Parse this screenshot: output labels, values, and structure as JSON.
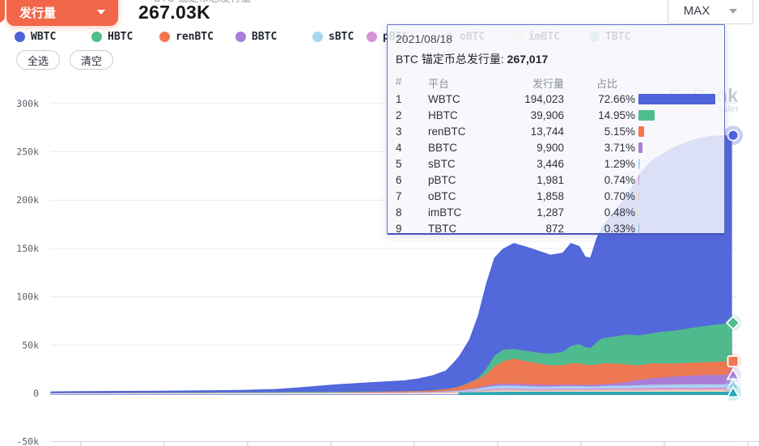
{
  "header": {
    "metric_select": {
      "label": "发行量"
    },
    "title_label_clipped": "BTC 锚定币总发行量",
    "title_value": "267.03K",
    "range_select": {
      "value": "MAX"
    }
  },
  "actions": {
    "select_all": "全选",
    "clear": "清空"
  },
  "legend": {
    "items": [
      {
        "label": "WBTC",
        "color": "#4d63da"
      },
      {
        "label": "HBTC",
        "color": "#4fbd8b"
      },
      {
        "label": "renBTC",
        "color": "#f3764f"
      },
      {
        "label": "BBTC",
        "color": "#a87ddb"
      },
      {
        "label": "sBTC",
        "color": "#a9d5f3"
      },
      {
        "label": "pBTC",
        "color": "#d991d9"
      },
      {
        "label": "oBTC",
        "color": "#f0c9a8"
      },
      {
        "label": "imBTC",
        "color": "#efe3cf"
      },
      {
        "label": "TBTC",
        "color": "#7fc2cc"
      }
    ]
  },
  "watermark": {
    "title": "DeBank",
    "subtitle": "The DeFi Wallet"
  },
  "tooltip": {
    "date": "2021/08/18",
    "total_label": "BTC 锚定币总发行量:",
    "total_value": "267,017",
    "columns": {
      "rank": "#",
      "platform": "平台",
      "issuance": "发行量",
      "share": "占比"
    },
    "rows": [
      {
        "rank": "1",
        "platform": "WBTC",
        "issuance": "194,023",
        "share": "72.66%",
        "share_pct": 72.66,
        "color": "#4d63da"
      },
      {
        "rank": "2",
        "platform": "HBTC",
        "issuance": "39,906",
        "share": "14.95%",
        "share_pct": 14.95,
        "color": "#4fbd8b"
      },
      {
        "rank": "3",
        "platform": "renBTC",
        "issuance": "13,744",
        "share": "5.15%",
        "share_pct": 5.15,
        "color": "#f3764f"
      },
      {
        "rank": "4",
        "platform": "BBTC",
        "issuance": "9,900",
        "share": "3.71%",
        "share_pct": 3.71,
        "color": "#a87ddb"
      },
      {
        "rank": "5",
        "platform": "sBTC",
        "issuance": "3,446",
        "share": "1.29%",
        "share_pct": 1.29,
        "color": "#a9d5f3"
      },
      {
        "rank": "6",
        "platform": "pBTC",
        "issuance": "1,981",
        "share": "0.74%",
        "share_pct": 0.74,
        "color": "#d991d9"
      },
      {
        "rank": "7",
        "platform": "oBTC",
        "issuance": "1,858",
        "share": "0.70%",
        "share_pct": 0.7,
        "color": "#f0c9a8"
      },
      {
        "rank": "8",
        "platform": "imBTC",
        "issuance": "1,287",
        "share": "0.48%",
        "share_pct": 0.48,
        "color": "#efe3cf"
      },
      {
        "rank": "9",
        "platform": "TBTC",
        "issuance": "872",
        "share": "0.33%",
        "share_pct": 0.33,
        "color": "#7fc2cc"
      }
    ]
  },
  "chart_data": {
    "type": "area",
    "stacked": true,
    "title": "BTC 锚定币总发行量",
    "unit": "BTC",
    "legend_position": "top",
    "grid": true,
    "ylim": [
      -50000,
      300000
    ],
    "y_ticks": [
      {
        "label": "300k",
        "k": 300
      },
      {
        "label": "250k",
        "k": 250
      },
      {
        "label": "200k",
        "k": 200
      },
      {
        "label": "150k",
        "k": 150
      },
      {
        "label": "100k",
        "k": 100
      },
      {
        "label": "50k",
        "k": 50
      },
      {
        "label": "0",
        "k": 0
      },
      {
        "label": "-50k",
        "k": -50
      }
    ],
    "hover_point": {
      "date": "2021/08/18",
      "total": 267017
    },
    "series_note": "points are [x_percent_of_timeline, cumulative_stack_top_in_thousand_BTC]; series listed top of stack to bottom",
    "series": [
      {
        "name": "WBTC",
        "color": "#4d63da",
        "marker": "circle",
        "stroke": "#4d63da",
        "points": [
          [
            0,
            1.5
          ],
          [
            4,
            1.8
          ],
          [
            10,
            2
          ],
          [
            16,
            2.3
          ],
          [
            22,
            2.6
          ],
          [
            28,
            3
          ],
          [
            33,
            4
          ],
          [
            37,
            6
          ],
          [
            42,
            9
          ],
          [
            47,
            11
          ],
          [
            52,
            13
          ],
          [
            54,
            15
          ],
          [
            56,
            18
          ],
          [
            58,
            23
          ],
          [
            59,
            30
          ],
          [
            60,
            38
          ],
          [
            61.5,
            55
          ],
          [
            62.8,
            80
          ],
          [
            64,
            113
          ],
          [
            65.2,
            140
          ],
          [
            66.4,
            149
          ],
          [
            68,
            155
          ],
          [
            70,
            151
          ],
          [
            71.7,
            147
          ],
          [
            73.4,
            143
          ],
          [
            75.2,
            145
          ],
          [
            76.4,
            155
          ],
          [
            77.6,
            152
          ],
          [
            78.5,
            141
          ],
          [
            79.3,
            140
          ],
          [
            80.2,
            160
          ],
          [
            81,
            172
          ],
          [
            83,
            190
          ],
          [
            84.7,
            205
          ],
          [
            86.4,
            226
          ],
          [
            88.2,
            240
          ],
          [
            90,
            248
          ],
          [
            91.7,
            255
          ],
          [
            93.5,
            260
          ],
          [
            95.3,
            264
          ],
          [
            97,
            266
          ],
          [
            98.8,
            266.5
          ],
          [
            100,
            267
          ]
        ]
      },
      {
        "name": "HBTC",
        "color": "#4fbd8b",
        "marker": "diamond",
        "stroke": null,
        "points": [
          [
            0,
            0.2
          ],
          [
            50,
            2
          ],
          [
            54,
            2.5
          ],
          [
            56,
            3.2
          ],
          [
            58,
            4.6
          ],
          [
            59,
            5.6
          ],
          [
            60,
            7.2
          ],
          [
            61.5,
            11.5
          ],
          [
            62.8,
            16
          ],
          [
            64,
            26
          ],
          [
            65.2,
            39
          ],
          [
            66.4,
            45
          ],
          [
            68,
            46
          ],
          [
            70,
            44
          ],
          [
            71.7,
            42
          ],
          [
            73.4,
            41
          ],
          [
            75.2,
            43
          ],
          [
            76.4,
            49
          ],
          [
            77.6,
            51
          ],
          [
            78.5,
            48
          ],
          [
            79.3,
            47
          ],
          [
            80.2,
            53
          ],
          [
            81,
            57
          ],
          [
            83,
            59
          ],
          [
            84.7,
            61
          ],
          [
            86.4,
            60
          ],
          [
            88.2,
            62
          ],
          [
            90,
            64
          ],
          [
            91.7,
            65
          ],
          [
            93.5,
            67
          ],
          [
            95.3,
            69
          ],
          [
            97,
            70.5
          ],
          [
            98.8,
            72
          ],
          [
            100,
            73
          ]
        ]
      },
      {
        "name": "renBTC",
        "color": "#f3764f",
        "marker": "square",
        "stroke": null,
        "points": [
          [
            0,
            0.15
          ],
          [
            33,
            0.5
          ],
          [
            42,
            1
          ],
          [
            50,
            1.9
          ],
          [
            54,
            2.4
          ],
          [
            56,
            3
          ],
          [
            58,
            4.4
          ],
          [
            59,
            5.4
          ],
          [
            60,
            7
          ],
          [
            61.5,
            11
          ],
          [
            62.8,
            15
          ],
          [
            64,
            20
          ],
          [
            65.2,
            28
          ],
          [
            66.4,
            33
          ],
          [
            68,
            36
          ],
          [
            70,
            33
          ],
          [
            71.7,
            31
          ],
          [
            73.4,
            29
          ],
          [
            75.2,
            29
          ],
          [
            76.4,
            31
          ],
          [
            77.6,
            31
          ],
          [
            78.5,
            30
          ],
          [
            79.3,
            29
          ],
          [
            80.2,
            30
          ],
          [
            81,
            31
          ],
          [
            83,
            31
          ],
          [
            84.7,
            30
          ],
          [
            86.4,
            29
          ],
          [
            88.2,
            31
          ],
          [
            90,
            31
          ],
          [
            91.7,
            31
          ],
          [
            93.5,
            31.5
          ],
          [
            95.3,
            32
          ],
          [
            97,
            32.5
          ],
          [
            98.8,
            33
          ],
          [
            100,
            33.2
          ]
        ]
      },
      {
        "name": "BBTC",
        "color": "#a87ddb",
        "marker": "triangle",
        "stroke": null,
        "points": [
          [
            0,
            0.1
          ],
          [
            52,
            1.2
          ],
          [
            56,
            1.8
          ],
          [
            58,
            2.4
          ],
          [
            60,
            3.2
          ],
          [
            61.5,
            4.5
          ],
          [
            62.8,
            6
          ],
          [
            64,
            8
          ],
          [
            65.2,
            9.5
          ],
          [
            66.4,
            10
          ],
          [
            68,
            10
          ],
          [
            70,
            9.5
          ],
          [
            71.7,
            9
          ],
          [
            73.4,
            8.8
          ],
          [
            75.2,
            9
          ],
          [
            77.6,
            9
          ],
          [
            79.3,
            8.8
          ],
          [
            81,
            9.5
          ],
          [
            83,
            10.5
          ],
          [
            84.7,
            12
          ],
          [
            86.4,
            14
          ],
          [
            88.2,
            15.5
          ],
          [
            90,
            16.5
          ],
          [
            91.7,
            17.5
          ],
          [
            93.5,
            18.2
          ],
          [
            95.3,
            18.8
          ],
          [
            97,
            19
          ],
          [
            100,
            19.3
          ]
        ]
      },
      {
        "name": "sBTC",
        "color": "#a9d5f3",
        "marker": "triangle",
        "stroke": null,
        "points": [
          [
            0,
            0.08
          ],
          [
            52,
            1
          ],
          [
            56,
            1.5
          ],
          [
            58,
            2
          ],
          [
            60,
            2.8
          ],
          [
            61.5,
            4
          ],
          [
            62.8,
            5
          ],
          [
            64,
            6.5
          ],
          [
            65.2,
            7.5
          ],
          [
            66.4,
            8
          ],
          [
            68,
            8
          ],
          [
            70,
            7.5
          ],
          [
            71.7,
            7
          ],
          [
            73.4,
            7
          ],
          [
            75.2,
            7.5
          ],
          [
            77.6,
            7.5
          ],
          [
            79.3,
            7
          ],
          [
            81,
            7.5
          ],
          [
            83,
            8
          ],
          [
            84.7,
            8
          ],
          [
            86.4,
            8.5
          ],
          [
            88.2,
            9
          ],
          [
            90,
            9
          ],
          [
            91.7,
            9.2
          ],
          [
            93.5,
            9.3
          ],
          [
            95.3,
            9.4
          ],
          [
            100,
            9.4
          ]
        ]
      },
      {
        "name": "pBTC",
        "color": "#d991d9",
        "marker": "none",
        "stroke": null,
        "points": [
          [
            0,
            0.05
          ],
          [
            52,
            0.8
          ],
          [
            56,
            1
          ],
          [
            58,
            1.4
          ],
          [
            60,
            1.8
          ],
          [
            61.5,
            2.5
          ],
          [
            62.8,
            3.2
          ],
          [
            64,
            4
          ],
          [
            65.2,
            4.8
          ],
          [
            66.4,
            5
          ],
          [
            68,
            5
          ],
          [
            70,
            4.6
          ],
          [
            73.4,
            4.6
          ],
          [
            75.2,
            4.8
          ],
          [
            79.3,
            4.8
          ],
          [
            81,
            5
          ],
          [
            84.7,
            5.3
          ],
          [
            88.2,
            5.6
          ],
          [
            91.7,
            5.8
          ],
          [
            95.3,
            5.9
          ],
          [
            100,
            6
          ]
        ]
      },
      {
        "name": "oBTC",
        "color": "#f0c9a8",
        "marker": "none",
        "stroke": null,
        "points": [
          [
            0,
            0.03
          ],
          [
            52,
            0.5
          ],
          [
            56,
            0.7
          ],
          [
            58,
            1
          ],
          [
            60,
            1.3
          ],
          [
            61.5,
            1.8
          ],
          [
            62.8,
            2.3
          ],
          [
            64,
            2.8
          ],
          [
            65.2,
            3.3
          ],
          [
            66.4,
            3.5
          ],
          [
            68,
            3.5
          ],
          [
            70,
            3.2
          ],
          [
            73.4,
            3.2
          ],
          [
            75.2,
            3.4
          ],
          [
            79.3,
            3.4
          ],
          [
            81,
            3.5
          ],
          [
            84.7,
            3.7
          ],
          [
            88.2,
            3.8
          ],
          [
            91.7,
            3.9
          ],
          [
            95.3,
            4
          ],
          [
            100,
            4.1
          ]
        ]
      },
      {
        "name": "imBTC",
        "color": "#efe3cf",
        "marker": "none",
        "stroke": null,
        "points": [
          [
            0,
            0.02
          ],
          [
            52,
            0.3
          ],
          [
            56,
            0.5
          ],
          [
            58,
            0.7
          ],
          [
            60,
            0.9
          ],
          [
            61.5,
            1.2
          ],
          [
            62.8,
            1.5
          ],
          [
            64,
            1.8
          ],
          [
            65.2,
            2.1
          ],
          [
            66.4,
            2.2
          ],
          [
            68,
            2.2
          ],
          [
            75.2,
            2.1
          ],
          [
            81,
            2.2
          ],
          [
            100,
            2.2
          ]
        ]
      },
      {
        "name": "TBTC",
        "color": "#bfe3e8",
        "marker": "triangle",
        "stroke": "#2aa7b8",
        "points": [
          [
            60,
            0.2
          ],
          [
            62,
            0.4
          ],
          [
            64,
            0.6
          ],
          [
            66,
            0.75
          ],
          [
            68,
            0.85
          ],
          [
            81,
            0.87
          ],
          [
            100,
            0.87
          ]
        ]
      }
    ]
  }
}
